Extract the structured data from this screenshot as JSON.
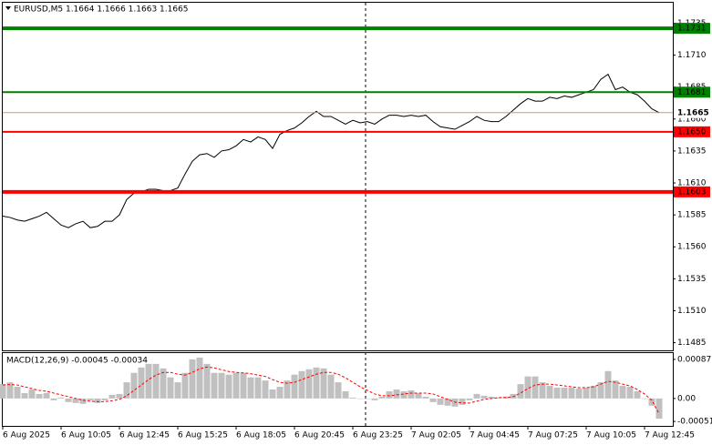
{
  "chart_data": [
    {
      "type": "line",
      "title": "EURUSD,M5  1.1664 1.1666 1.1663 1.1665",
      "color": "#000000",
      "categories": [
        "6 Aug 2025",
        null,
        null,
        null,
        null,
        null,
        null,
        null,
        "6 Aug 10:05",
        null,
        null,
        null,
        null,
        null,
        null,
        null,
        "6 Aug 12:45",
        null,
        null,
        null,
        null,
        null,
        null,
        null,
        "6 Aug 15:25",
        null,
        null,
        null,
        null,
        null,
        null,
        null,
        "6 Aug 18:05",
        null,
        null,
        null,
        null,
        null,
        null,
        null,
        "6 Aug 20:45",
        null,
        null,
        null,
        null,
        null,
        null,
        null,
        "6 Aug 23:25",
        null,
        null,
        null,
        null,
        null,
        null,
        null,
        "7 Aug 02:05",
        null,
        null,
        null,
        null,
        null,
        null,
        null,
        "7 Aug 04:45",
        null,
        null,
        null,
        null,
        null,
        null,
        null,
        "7 Aug 07:25",
        null,
        null,
        null,
        null,
        null,
        null,
        null,
        "7 Aug 10:05",
        null,
        null,
        null,
        null,
        null,
        null,
        null,
        "7 Aug 12:45",
        null,
        null
      ],
      "values": [
        1.1584,
        1.1583,
        1.1581,
        1.158,
        1.1582,
        1.1584,
        1.1587,
        1.1582,
        1.1577,
        1.1575,
        1.1578,
        1.158,
        1.1575,
        1.1576,
        1.158,
        1.158,
        1.1585,
        1.1597,
        1.1602,
        1.1603,
        1.1605,
        1.1605,
        1.1604,
        1.1604,
        1.1606,
        1.1617,
        1.1627,
        1.1632,
        1.1633,
        1.163,
        1.1635,
        1.1636,
        1.1639,
        1.1644,
        1.1642,
        1.1646,
        1.1644,
        1.1637,
        1.1648,
        1.1651,
        1.1653,
        1.1657,
        1.1662,
        1.1666,
        1.1662,
        1.1662,
        1.1659,
        1.1656,
        1.1659,
        1.1657,
        1.1658,
        1.1656,
        1.166,
        1.1663,
        1.1663,
        1.1662,
        1.1663,
        1.1662,
        1.1663,
        1.1658,
        1.1654,
        1.1653,
        1.1652,
        1.1655,
        1.1658,
        1.1662,
        1.1659,
        1.1658,
        1.1658,
        1.1662,
        1.1667,
        1.1672,
        1.1676,
        1.1674,
        1.1674,
        1.1677,
        1.1676,
        1.1678,
        1.1677,
        1.1679,
        1.1681,
        1.1683,
        1.1691,
        1.1695,
        1.1683,
        1.1685,
        1.1681,
        1.1679,
        1.1674,
        1.1668,
        1.1665
      ],
      "ylim": [
        1.1479,
        1.1751
      ],
      "yticks": [
        {
          "value": 1.1485,
          "label": "1.1485"
        },
        {
          "value": 1.151,
          "label": "1.1510"
        },
        {
          "value": 1.1535,
          "label": "1.1535"
        },
        {
          "value": 1.156,
          "label": "1.1560"
        },
        {
          "value": 1.1585,
          "label": "1.1585"
        },
        {
          "value": 1.161,
          "label": "1.1610"
        },
        {
          "value": 1.1635,
          "label": "1.1635"
        },
        {
          "value": 1.166,
          "label": "1.1660"
        },
        {
          "value": 1.1685,
          "label": "1.1685"
        },
        {
          "value": 1.171,
          "label": "1.1710"
        },
        {
          "value": 1.1735,
          "label": "1.1735"
        }
      ],
      "levels": [
        {
          "value": 1.1731,
          "label": "1.1731",
          "color": "#008000",
          "thick": true
        },
        {
          "value": 1.1681,
          "label": "1.1681",
          "color": "#008000",
          "thick": false
        },
        {
          "value": 1.1665,
          "label": "1.1665",
          "color": "#c8a064",
          "thick": false,
          "current": true
        },
        {
          "value": 1.165,
          "label": "1.1650",
          "color": "#ff0000",
          "thick": false
        },
        {
          "value": 1.1603,
          "label": "1.1603",
          "color": "#ff0000",
          "thick": true
        }
      ]
    },
    {
      "type": "macd",
      "title": "MACD(12,26,9) -0.00045 -0.00034",
      "series": [
        {
          "type": "bar",
          "color": "#c0c0c0",
          "values": [
            0.00032,
            0.00036,
            0.00026,
            0.00012,
            0.0002,
            0.0001,
            0.00012,
            -4e-05,
            2e-05,
            -8e-05,
            -0.0001,
            -0.00012,
            -4e-05,
            -0.0001,
            -4e-05,
            8e-05,
            0.0001,
            0.00036,
            0.00057,
            0.00069,
            0.00077,
            0.00077,
            0.00067,
            0.00047,
            0.00036,
            0.00057,
            0.00087,
            0.00091,
            0.00077,
            0.00057,
            0.00057,
            0.00053,
            0.00057,
            0.00057,
            0.00047,
            0.00047,
            0.0004,
            0.0002,
            0.00026,
            0.0004,
            0.00053,
            0.00061,
            0.00065,
            0.00069,
            0.00067,
            0.00053,
            0.00036,
            0.00016,
            2e-05,
            0,
            0,
            -4e-05,
            4e-05,
            0.00016,
            0.0002,
            0.00016,
            0.00018,
            0.00012,
            4e-05,
            -8e-05,
            -0.00014,
            -0.00016,
            -0.00018,
            -0.00014,
            -4e-05,
            0.0001,
            6e-05,
            4e-05,
            2e-05,
            4e-05,
            0.0001,
            0.00032,
            0.00049,
            0.00049,
            0.00036,
            0.00028,
            0.00024,
            0.00024,
            0.00024,
            0.00022,
            0.00024,
            0.00028,
            0.00036,
            0.00061,
            0.0004,
            0.00028,
            0.00026,
            0.00016,
            0,
            -0.00016,
            -0.00045
          ]
        },
        {
          "type": "line",
          "color": "#ff0000",
          "values": [
            0.0003,
            0.00031,
            0.0003,
            0.00026,
            0.00022,
            0.00018,
            0.00016,
            0.00012,
            8e-05,
            4e-05,
            0,
            -4e-05,
            -6e-05,
            -7e-05,
            -7e-05,
            -5e-05,
            -2e-05,
            6e-05,
            0.00018,
            0.0003,
            0.00042,
            0.00052,
            0.00058,
            0.00058,
            0.00054,
            0.00052,
            0.00058,
            0.00066,
            0.0007,
            0.00068,
            0.00064,
            0.0006,
            0.00058,
            0.00057,
            0.00055,
            0.00052,
            0.00049,
            0.00042,
            0.00036,
            0.00034,
            0.00036,
            0.00042,
            0.00048,
            0.00054,
            0.00058,
            0.00058,
            0.00054,
            0.00046,
            0.00036,
            0.00026,
            0.00018,
            0.0001,
            6e-05,
            6e-05,
            8e-05,
            0.0001,
            0.00012,
            0.00012,
            0.00012,
            0.0001,
            4e-05,
            -2e-05,
            -8e-05,
            -0.0001,
            -0.0001,
            -6e-05,
            -2e-05,
            0,
            2e-05,
            2e-05,
            4e-05,
            0.00012,
            0.00022,
            0.0003,
            0.00032,
            0.00032,
            0.0003,
            0.00028,
            0.00026,
            0.00024,
            0.00024,
            0.00026,
            0.00032,
            0.00038,
            0.00036,
            0.00032,
            0.00028,
            0.0002,
            0.0001,
            -4e-05,
            -0.00034
          ]
        }
      ],
      "ylim": [
        -0.00061,
        0.00101
      ],
      "yticks": [
        0.00087,
        {
          "value": 0,
          "label": "0.00"
        },
        -0.00051
      ]
    }
  ]
}
